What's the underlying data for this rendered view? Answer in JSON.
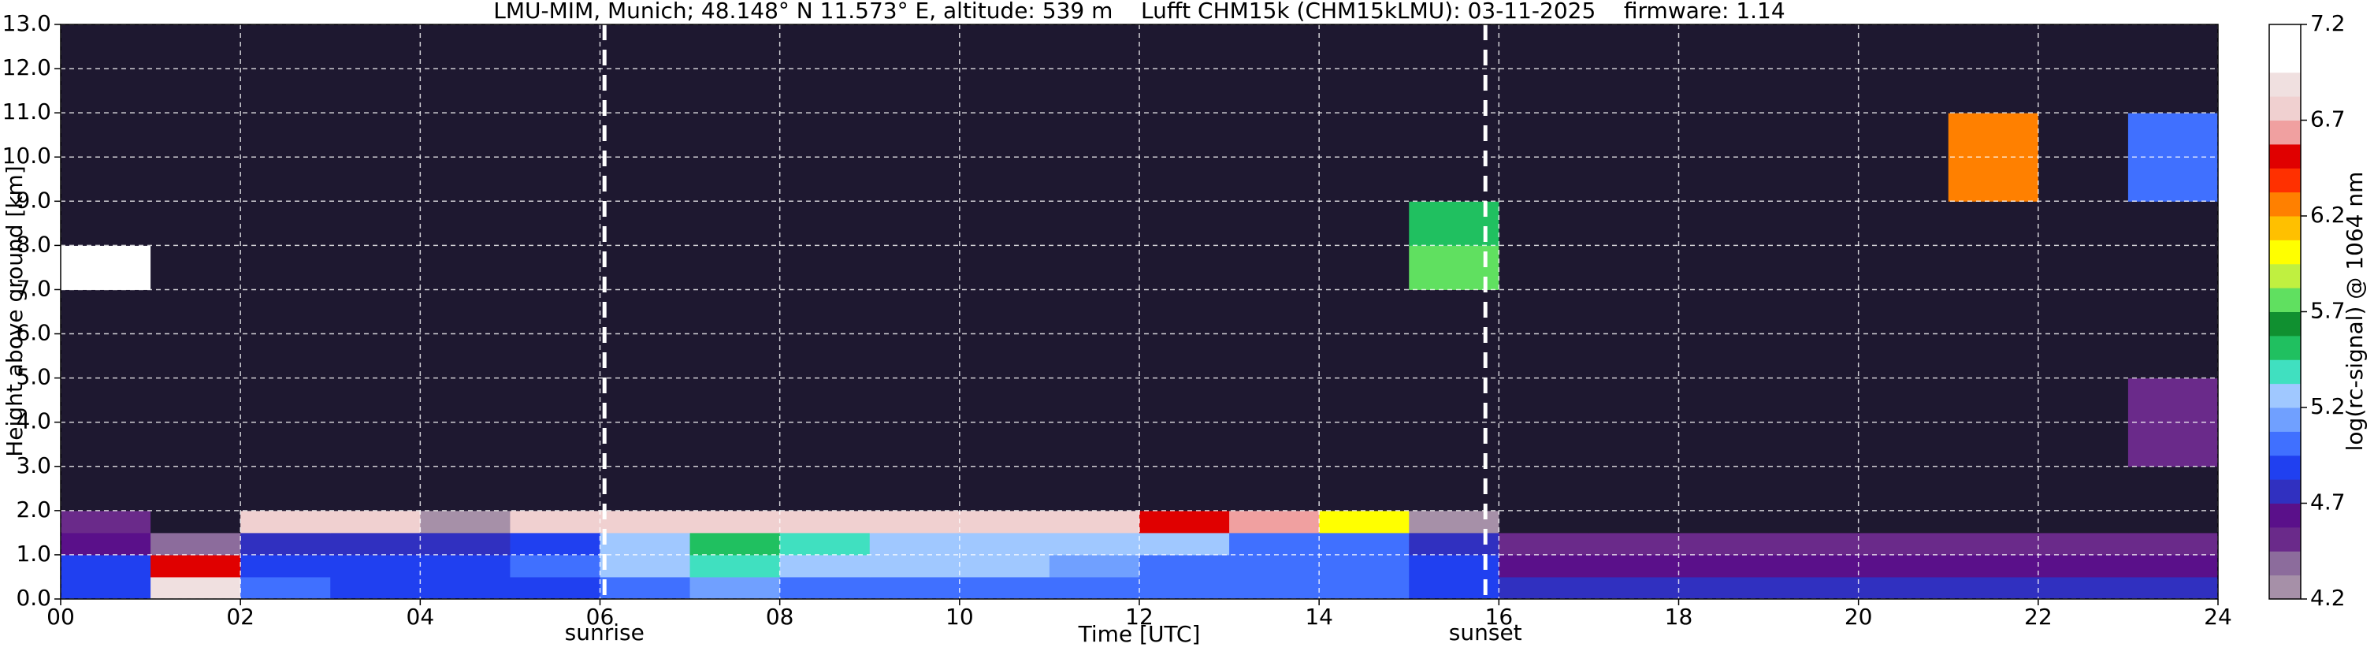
{
  "chart_data": {
    "type": "heatmap",
    "title": "LMU-MIM, Munich; 48.148° N 11.573° E, altitude: 539 m    Lufft CHM15k (CHM15kLMU): 03-11-2025    firmware: 1.14",
    "xlabel": "Time [UTC]",
    "ylabel": "Height above ground [km]",
    "xlim": [
      0,
      24
    ],
    "ylim": [
      0,
      13
    ],
    "xticks": [
      {
        "value": 0,
        "label": "00"
      },
      {
        "value": 2,
        "label": "02"
      },
      {
        "value": 4,
        "label": "04"
      },
      {
        "value": 6,
        "label": "06"
      },
      {
        "value": 8,
        "label": "08"
      },
      10,
      12,
      14,
      16,
      18,
      20,
      22,
      24
    ],
    "yticks": [
      {
        "value": 0,
        "label": "0.0"
      },
      {
        "value": 1,
        "label": "1.0"
      },
      {
        "value": 2,
        "label": "2.0"
      },
      {
        "value": 3,
        "label": "3.0"
      },
      {
        "value": 4,
        "label": "4.0"
      },
      {
        "value": 5,
        "label": "5.0"
      },
      {
        "value": 6,
        "label": "6.0"
      },
      {
        "value": 7,
        "label": "7.0"
      },
      {
        "value": 8,
        "label": "8.0"
      },
      {
        "value": 9,
        "label": "9.0"
      },
      {
        "value": 10,
        "label": "10.0"
      },
      {
        "value": 11,
        "label": "11.0"
      },
      {
        "value": 12,
        "label": "12.0"
      },
      {
        "value": 13,
        "label": "13.0"
      }
    ],
    "grid": true,
    "grid_color": "#ffffff",
    "x_edges": [
      0,
      1,
      2,
      3,
      4,
      5,
      6,
      7,
      8,
      9,
      10,
      11,
      12,
      13,
      14,
      15,
      16,
      17,
      18,
      19,
      20,
      21,
      22,
      23,
      24
    ],
    "y_edges": [
      0,
      0.5,
      1,
      1.5,
      2,
      3,
      5,
      7,
      8,
      9,
      11,
      13
    ],
    "z": [
      [
        4.9,
        6.9,
        5.0,
        4.9,
        4.9,
        4.9,
        5.0,
        5.1,
        5.0,
        5.0,
        5.0,
        5.0,
        5.0,
        5.0,
        4.95,
        4.9,
        4.75,
        4.75,
        4.75,
        4.75,
        4.75,
        4.75,
        4.75,
        4.75
      ],
      [
        4.85,
        6.5,
        4.9,
        4.9,
        4.9,
        4.95,
        5.3,
        5.4,
        5.3,
        5.3,
        5.2,
        5.1,
        5.0,
        5.0,
        4.95,
        4.9,
        4.6,
        4.6,
        4.6,
        4.6,
        4.6,
        4.6,
        4.65,
        4.65
      ],
      [
        4.6,
        4.4,
        4.7,
        4.75,
        4.8,
        4.9,
        5.3,
        5.5,
        5.4,
        5.3,
        5.3,
        5.2,
        5.2,
        5.0,
        4.95,
        4.8,
        4.55,
        4.55,
        4.55,
        4.55,
        4.5,
        4.5,
        4.5,
        4.5
      ],
      [
        4.55,
        4.0,
        6.8,
        6.8,
        4.2,
        6.8,
        6.8,
        6.8,
        6.8,
        6.7,
        6.8,
        6.8,
        6.5,
        6.6,
        6.0,
        4.2,
        4.0,
        4.0,
        4.0,
        4.0,
        4.0,
        4.0,
        4.0,
        4.0
      ],
      [
        4.0,
        4.0,
        4.0,
        4.0,
        4.0,
        4.0,
        4.0,
        4.0,
        4.0,
        4.0,
        4.0,
        4.0,
        4.0,
        4.0,
        4.0,
        4.0,
        4.0,
        4.0,
        4.0,
        4.0,
        4.0,
        4.0,
        4.0,
        4.0
      ],
      [
        4.0,
        4.0,
        4.0,
        4.0,
        4.0,
        4.0,
        4.0,
        4.0,
        4.0,
        4.0,
        4.0,
        4.0,
        4.0,
        4.0,
        4.0,
        4.0,
        4.0,
        4.0,
        4.0,
        4.0,
        4.0,
        4.0,
        4.0,
        4.5
      ],
      [
        4.0,
        4.0,
        4.0,
        4.0,
        4.0,
        4.0,
        4.0,
        4.0,
        4.0,
        4.0,
        4.0,
        4.0,
        4.0,
        4.0,
        4.0,
        4.0,
        4.0,
        4.0,
        4.0,
        4.0,
        4.0,
        4.0,
        4.0,
        4.0
      ],
      [
        7.0,
        4.0,
        4.0,
        4.0,
        4.0,
        4.0,
        4.0,
        4.0,
        4.0,
        4.0,
        4.0,
        4.0,
        4.0,
        4.0,
        4.0,
        5.8,
        4.0,
        4.0,
        4.0,
        4.0,
        4.0,
        4.0,
        4.0,
        4.0
      ],
      [
        4.0,
        4.0,
        4.0,
        4.0,
        4.0,
        4.0,
        4.0,
        4.0,
        4.0,
        4.0,
        4.0,
        4.0,
        4.0,
        4.0,
        4.0,
        5.5,
        4.0,
        4.0,
        4.0,
        4.0,
        4.0,
        4.0,
        4.0,
        4.0
      ],
      [
        4.0,
        4.0,
        4.0,
        4.0,
        4.0,
        4.0,
        4.0,
        4.0,
        4.0,
        4.0,
        4.0,
        4.0,
        4.0,
        4.0,
        4.0,
        4.0,
        4.0,
        4.0,
        4.0,
        4.0,
        4.0,
        6.2,
        4.0,
        5.0
      ],
      [
        4.0,
        4.0,
        4.0,
        4.0,
        4.0,
        4.0,
        4.0,
        4.0,
        4.0,
        4.0,
        4.0,
        4.0,
        4.0,
        4.0,
        4.0,
        4.0,
        4.0,
        4.0,
        4.0,
        4.0,
        4.0,
        4.0,
        4.0,
        4.0
      ]
    ],
    "under_color": "#1e1830",
    "colorbar": {
      "label": "log(rc-signal) @ 1064 nm",
      "lim": [
        4.2,
        7.2
      ],
      "ticks": [
        4.2,
        4.7,
        5.2,
        5.7,
        6.2,
        6.7,
        7.2
      ],
      "colors": [
        "#a690a8",
        "#8c6c9c",
        "#6a2a8a",
        "#5a108a",
        "#3030c0",
        "#2040f0",
        "#4070ff",
        "#70a0ff",
        "#a0c8ff",
        "#40e0c0",
        "#20c060",
        "#109030",
        "#60e060",
        "#c0f040",
        "#ffff00",
        "#ffc000",
        "#ff8000",
        "#ff3000",
        "#e00000",
        "#f0a0a0",
        "#f0d0d0",
        "#f0e0e0",
        "#ffffff",
        "#ffffff"
      ]
    },
    "annotations": [
      {
        "x": 6.05,
        "label": "sunrise"
      },
      {
        "x": 15.85,
        "label": "sunset"
      }
    ]
  }
}
